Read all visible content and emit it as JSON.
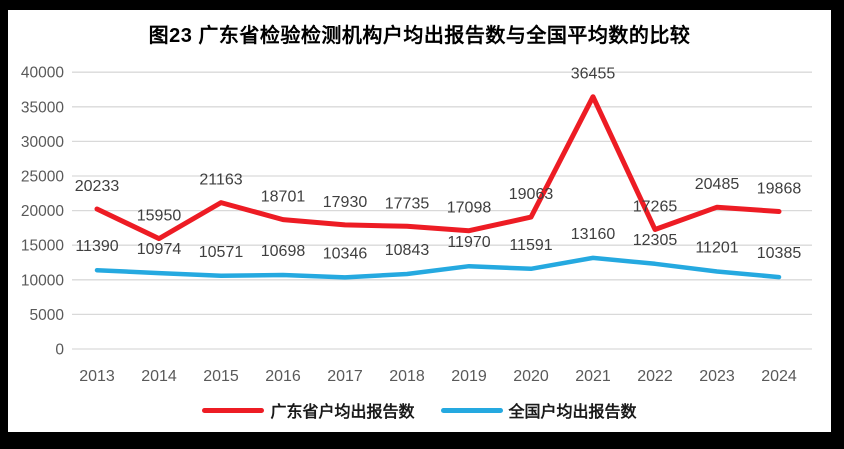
{
  "title": "图23  广东省检验检测机构户均出报告数与全国平均数的比较",
  "chart_data": {
    "type": "line",
    "categories": [
      "2013",
      "2014",
      "2015",
      "2016",
      "2017",
      "2018",
      "2019",
      "2020",
      "2021",
      "2022",
      "2023",
      "2024"
    ],
    "series": [
      {
        "name": "广东省户均出报告数",
        "color": "#ed1c24",
        "stroke_width": 5,
        "values": [
          20233,
          15950,
          21163,
          18701,
          17930,
          17735,
          17098,
          19063,
          36455,
          17265,
          20485,
          19868
        ]
      },
      {
        "name": "全国户均出报告数",
        "color": "#25a9e0",
        "stroke_width": 4.5,
        "values": [
          11390,
          10974,
          10571,
          10698,
          10346,
          10843,
          11970,
          11591,
          13160,
          12305,
          11201,
          10385
        ]
      }
    ],
    "title": "图23  广东省检验检测机构户均出报告数与全国平均数的比较",
    "xlabel": "",
    "ylabel": "",
    "ylim": [
      0,
      40000
    ],
    "ytick_step": 5000,
    "yticks": [
      "0",
      "5000",
      "10000",
      "15000",
      "20000",
      "25000",
      "30000",
      "35000",
      "40000"
    ],
    "grid": true,
    "data_labels": true,
    "legend_position": "bottom",
    "colors": {
      "gridline": "#d9d9d9",
      "axis_text": "#595959",
      "data_label_text": "#3f3f3f",
      "background": "#ffffff",
      "frame": "#000000"
    }
  }
}
